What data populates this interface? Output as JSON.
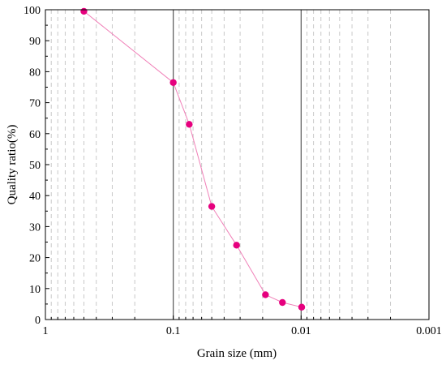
{
  "chart_data": {
    "type": "line",
    "title": "",
    "xlabel": "Grain size (mm)",
    "ylabel": "Quality ratio(%)",
    "x_scale": "log",
    "x_reversed": true,
    "xlim": [
      1,
      0.001
    ],
    "ylim": [
      0,
      100
    ],
    "x_ticks": [
      {
        "value": 1,
        "label": "1"
      },
      {
        "value": 0.1,
        "label": "0.1"
      },
      {
        "value": 0.01,
        "label": "0.01"
      },
      {
        "value": 0.001,
        "label": "0.001"
      }
    ],
    "y_ticks": [
      {
        "value": 0,
        "label": "0"
      },
      {
        "value": 10,
        "label": "10"
      },
      {
        "value": 20,
        "label": "20"
      },
      {
        "value": 30,
        "label": "30"
      },
      {
        "value": 40,
        "label": "40"
      },
      {
        "value": 50,
        "label": "50"
      },
      {
        "value": 60,
        "label": "60"
      },
      {
        "value": 70,
        "label": "70"
      },
      {
        "value": 80,
        "label": "80"
      },
      {
        "value": 90,
        "label": "90"
      },
      {
        "value": 100,
        "label": "100"
      }
    ],
    "grid": "vertical dashed at minor log ticks; solid at decades",
    "series": [
      {
        "color": "#e6007e",
        "line_color": "#f080b8",
        "x": [
          0.5,
          0.1,
          0.075,
          0.05,
          0.032,
          0.019,
          0.014,
          0.0099
        ],
        "y": [
          99.5,
          76.5,
          63,
          36.5,
          24,
          8,
          5.5,
          4
        ]
      }
    ]
  }
}
